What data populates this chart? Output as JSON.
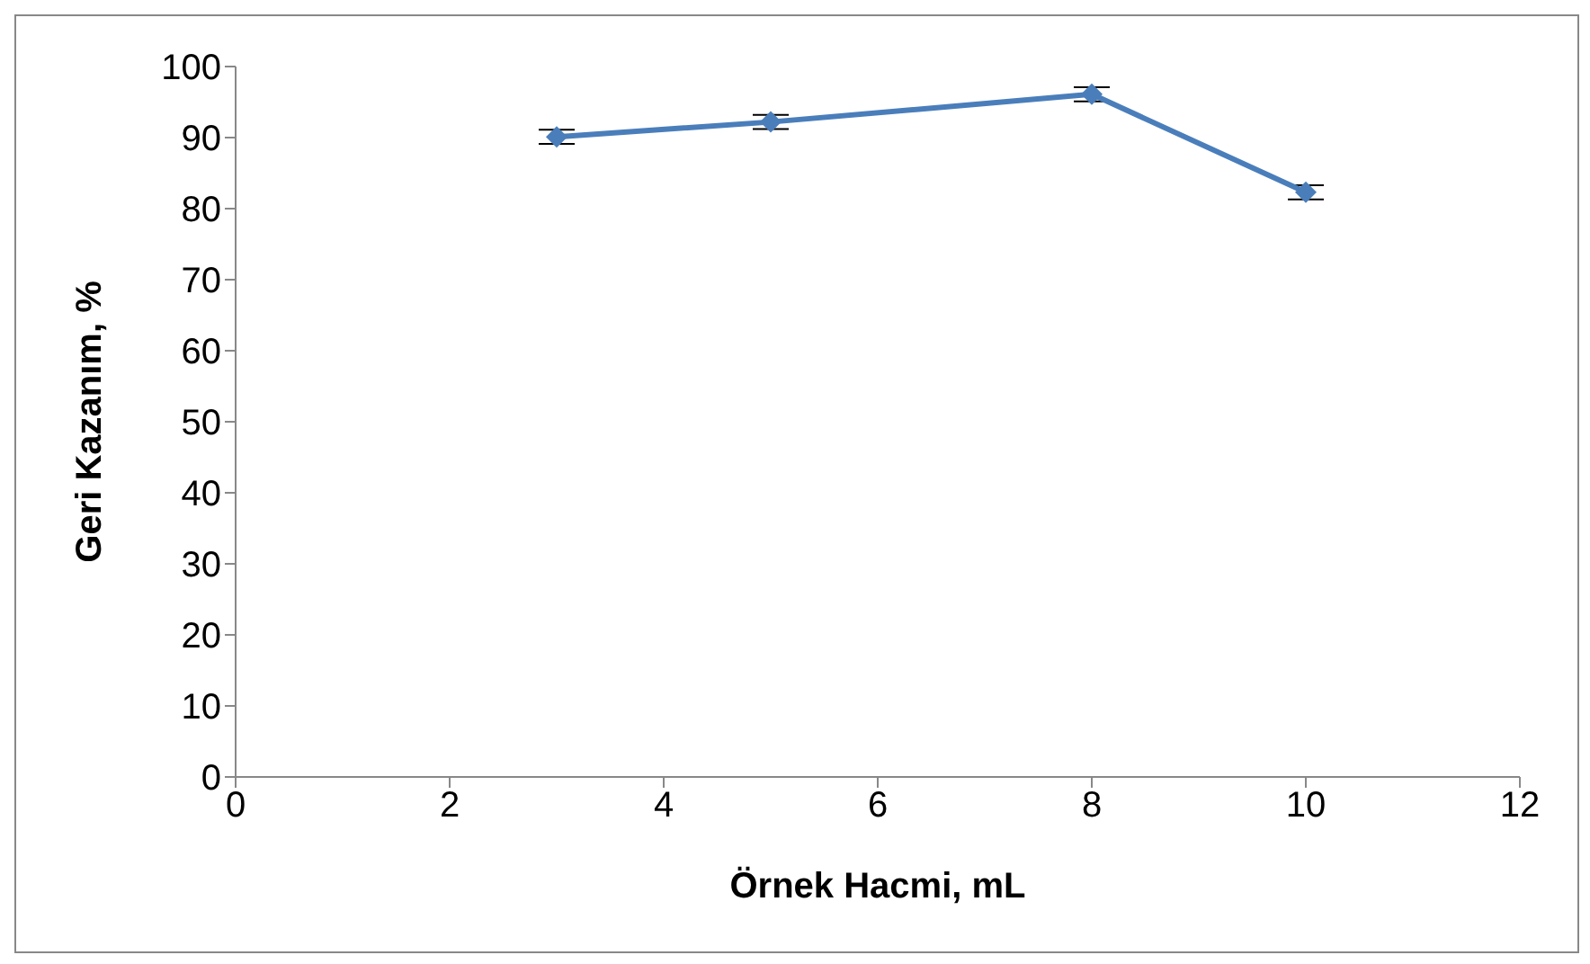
{
  "chart_data": {
    "type": "line",
    "xlabel": "Örnek Hacmi, mL",
    "ylabel": "Geri Kazanım, %",
    "x": [
      3,
      5,
      8,
      10
    ],
    "series": [
      {
        "color": "#4a7ebb",
        "values": [
          90.1,
          92.2,
          96.1,
          82.3
        ],
        "errors": [
          1,
          1,
          1,
          1
        ]
      }
    ],
    "xlim": [
      0,
      12
    ],
    "xticks": [
      0,
      2,
      4,
      6,
      8,
      10,
      12
    ],
    "ylim": [
      0,
      100
    ],
    "yticks": [
      0,
      10,
      20,
      30,
      40,
      50,
      60,
      70,
      80,
      90,
      100
    ],
    "grid": false,
    "marker": "diamond",
    "line_style": "solid"
  }
}
